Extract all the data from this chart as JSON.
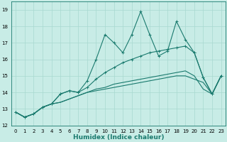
{
  "title": "",
  "xlabel": "Humidex (Indice chaleur)",
  "ylabel": "",
  "xlim": [
    -0.5,
    23.5
  ],
  "ylim": [
    12,
    19.5
  ],
  "yticks": [
    12,
    13,
    14,
    15,
    16,
    17,
    18,
    19
  ],
  "xticks": [
    0,
    1,
    2,
    3,
    4,
    5,
    6,
    7,
    8,
    9,
    10,
    11,
    12,
    13,
    14,
    15,
    16,
    17,
    18,
    19,
    20,
    21,
    22,
    23
  ],
  "bg_color": "#c8ece6",
  "grid_color": "#a8d8d0",
  "line_color": "#1a7a6e",
  "lines": [
    [
      12.8,
      12.5,
      12.7,
      13.1,
      13.3,
      13.9,
      14.1,
      14.0,
      14.7,
      16.0,
      17.5,
      17.0,
      16.4,
      17.5,
      18.9,
      17.5,
      16.2,
      16.5,
      18.3,
      17.2,
      16.4,
      14.9,
      13.9,
      15.0
    ],
    [
      12.8,
      12.5,
      12.7,
      13.1,
      13.3,
      13.9,
      14.1,
      14.0,
      14.3,
      14.8,
      15.2,
      15.5,
      15.8,
      16.0,
      16.2,
      16.4,
      16.5,
      16.6,
      16.7,
      16.8,
      16.4,
      14.9,
      13.9,
      15.0
    ],
    [
      12.8,
      12.5,
      12.7,
      13.1,
      13.3,
      13.4,
      13.6,
      13.8,
      14.0,
      14.2,
      14.3,
      14.5,
      14.6,
      14.7,
      14.8,
      14.9,
      15.0,
      15.1,
      15.2,
      15.3,
      15.0,
      14.2,
      13.9,
      15.0
    ],
    [
      12.8,
      12.5,
      12.7,
      13.1,
      13.3,
      13.4,
      13.6,
      13.8,
      14.0,
      14.1,
      14.2,
      14.3,
      14.4,
      14.5,
      14.6,
      14.7,
      14.8,
      14.9,
      15.0,
      15.0,
      14.8,
      14.6,
      13.9,
      15.0
    ]
  ],
  "figsize": [
    3.2,
    2.0
  ],
  "dpi": 100,
  "xlabel_fontsize": 6.5,
  "xlabel_fontweight": "bold",
  "tick_fontsize": 5,
  "linewidth": 0.8,
  "marker": "+",
  "markersize": 3.0,
  "markeredgewidth": 0.7
}
